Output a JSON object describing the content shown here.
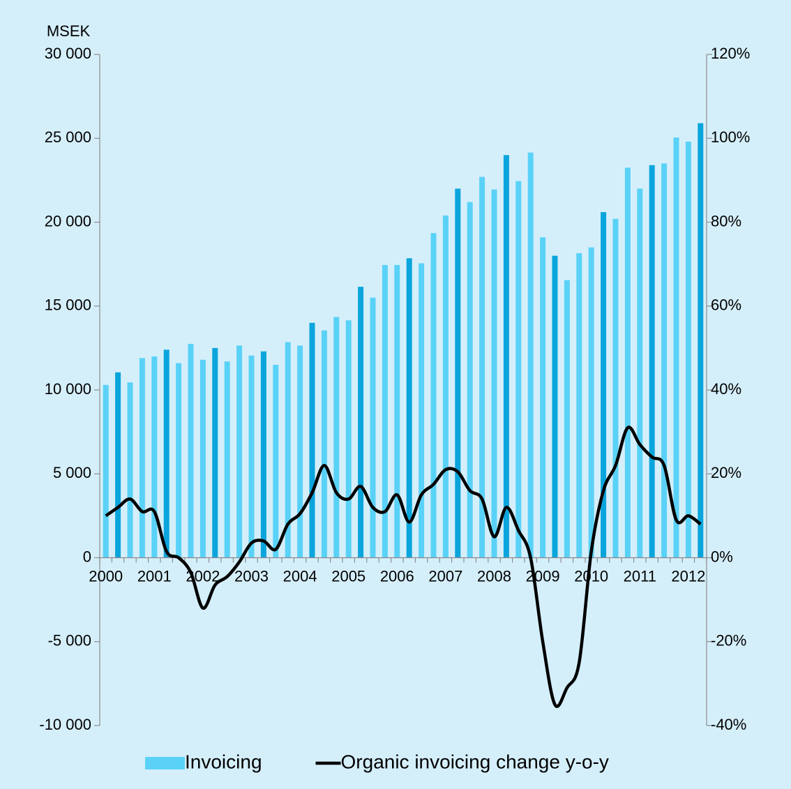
{
  "chart_data": {
    "type": "bar_line",
    "y_label": "MSEK",
    "categories": [
      "2000",
      null,
      null,
      null,
      "2001",
      null,
      null,
      null,
      "2002",
      null,
      null,
      null,
      "2003",
      null,
      null,
      null,
      "2004",
      null,
      null,
      null,
      "2005",
      null,
      null,
      null,
      "2006",
      null,
      null,
      null,
      "2007",
      null,
      null,
      null,
      "2008",
      null,
      null,
      null,
      "2009",
      null,
      null,
      null,
      "2010",
      null,
      null,
      null,
      "2011",
      null,
      null,
      null,
      "2012",
      null
    ],
    "series": [
      {
        "name": "Invoicing",
        "type": "bar",
        "color": "#5ad2f7",
        "colors": [
          "#5ad2f7",
          "#0aa5dc",
          "#5ad2f7",
          "#5ad2f7",
          "#5ad2f7",
          "#0aa5dc",
          "#5ad2f7",
          "#5ad2f7",
          "#5ad2f7",
          "#0aa5dc",
          "#5ad2f7",
          "#5ad2f7",
          "#5ad2f7",
          "#0aa5dc",
          "#5ad2f7",
          "#5ad2f7",
          "#5ad2f7",
          "#0aa5dc",
          "#5ad2f7",
          "#5ad2f7",
          "#5ad2f7",
          "#0aa5dc",
          "#5ad2f7",
          "#5ad2f7",
          "#5ad2f7",
          "#0aa5dc",
          "#5ad2f7",
          "#5ad2f7",
          "#5ad2f7",
          "#0aa5dc",
          "#5ad2f7",
          "#5ad2f7",
          "#5ad2f7",
          "#0aa5dc",
          "#5ad2f7",
          "#5ad2f7",
          "#5ad2f7",
          "#0aa5dc",
          "#5ad2f7",
          "#5ad2f7",
          "#5ad2f7",
          "#0aa5dc",
          "#5ad2f7",
          "#5ad2f7",
          "#5ad2f7",
          "#0aa5dc",
          "#5ad2f7",
          "#5ad2f7",
          "#5ad2f7",
          "#0aa5dc"
        ],
        "values": [
          10300,
          11050,
          10450,
          11900,
          12000,
          12400,
          11600,
          12750,
          11800,
          12500,
          11700,
          12650,
          12050,
          12300,
          11500,
          12850,
          12650,
          14000,
          13550,
          14350,
          14150,
          16150,
          15500,
          17450,
          17450,
          17850,
          17550,
          19350,
          20400,
          22000,
          21200,
          22700,
          21950,
          24000,
          22450,
          24150,
          19100,
          18000,
          16550,
          18150,
          18500,
          20600,
          20200,
          23250,
          22000,
          23400,
          23500,
          25050,
          24800,
          25900
        ]
      },
      {
        "name": "Organic invoicing change y-o-y",
        "type": "line",
        "axis": "y2",
        "color": "#000000",
        "values": [
          10,
          12,
          14,
          11,
          11,
          1.5,
          0,
          -3.5,
          -12,
          -6.5,
          -4.5,
          -1,
          3.5,
          4,
          2,
          8,
          10.5,
          15.5,
          22,
          15.5,
          14,
          17,
          12,
          11,
          15,
          8.5,
          15,
          17.5,
          21,
          20.5,
          16,
          14,
          5,
          12,
          6.5,
          0,
          -20,
          -35,
          -31,
          -25,
          1.5,
          16,
          22,
          31,
          27,
          24,
          22,
          9,
          10,
          8
        ]
      }
    ],
    "ylim": [
      -10000,
      30000
    ],
    "yticks": [
      {
        "value": -10000,
        "label": "-10 000"
      },
      {
        "value": -5000,
        "label": "-5 000"
      },
      0,
      {
        "value": 5000,
        "label": "5 000"
      },
      {
        "value": 10000,
        "label": "10 000"
      },
      {
        "value": 15000,
        "label": "15 000"
      },
      {
        "value": 20000,
        "label": "20 000"
      },
      {
        "value": 25000,
        "label": "25 000"
      },
      {
        "value": 30000,
        "label": "30 000"
      }
    ],
    "y2lim": [
      -40,
      120
    ],
    "y2ticks": [
      {
        "value": -40,
        "label": "-40%"
      },
      {
        "value": -20,
        "label": "-20%"
      },
      {
        "value": 0,
        "label": "0%"
      },
      {
        "value": 20,
        "label": "20%"
      },
      {
        "value": 40,
        "label": "40%"
      },
      {
        "value": 60,
        "label": "60%"
      },
      {
        "value": 80,
        "label": "80%"
      },
      {
        "value": 100,
        "label": "100%"
      },
      {
        "value": 120,
        "label": "120%"
      }
    ],
    "legend": "bottom",
    "grid": false
  }
}
